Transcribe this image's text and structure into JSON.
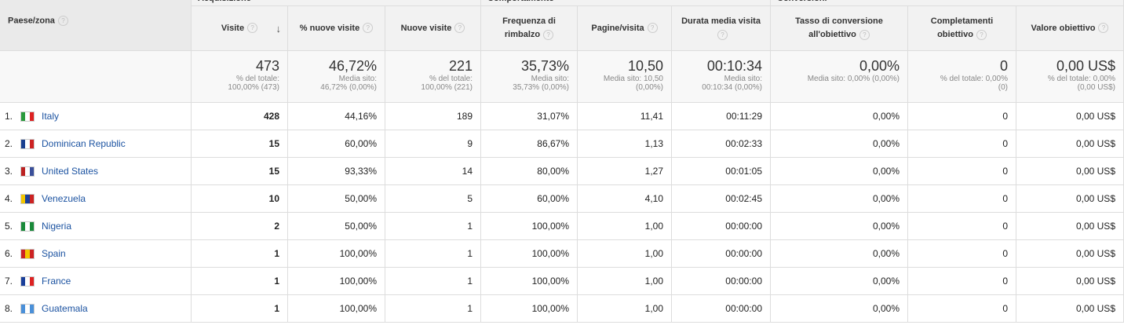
{
  "header_groups": [
    "Acquisizione",
    "Comportamento",
    "Conversioni"
  ],
  "country_header": "Paese/zona",
  "columns": [
    "Visite",
    "% nuove visite",
    "Nuove visite",
    "Frequenza di rimbalzo",
    "Pagine/visita",
    "Durata media visita",
    "Tasso di conversione all'obiettivo",
    "Completamenti obiettivo",
    "Valore obiettivo"
  ],
  "totals": [
    {
      "value": "473",
      "note": "% del totale: 100,00% (473)"
    },
    {
      "value": "46,72%",
      "note": "Media sito: 46,72% (0,00%)"
    },
    {
      "value": "221",
      "note": "% del totale: 100,00% (221)"
    },
    {
      "value": "35,73%",
      "note": "Media sito: 35,73% (0,00%)"
    },
    {
      "value": "10,50",
      "note": "Media sito: 10,50 (0,00%)"
    },
    {
      "value": "00:10:34",
      "note": "Media sito: 00:10:34 (0,00%)"
    },
    {
      "value": "0,00%",
      "note": "Media sito: 0,00% (0,00%)"
    },
    {
      "value": "0",
      "note": "% del totale: 0,00% (0)"
    },
    {
      "value": "0,00 US$",
      "note": "% del totale: 0,00% (0,00 US$)"
    }
  ],
  "rows": [
    {
      "rank": "1.",
      "country": "Italy",
      "values": [
        "428",
        "44,16%",
        "189",
        "31,07%",
        "11,41",
        "00:11:29",
        "0,00%",
        "0",
        "0,00 US$"
      ]
    },
    {
      "rank": "2.",
      "country": "Dominican Republic",
      "values": [
        "15",
        "60,00%",
        "9",
        "86,67%",
        "1,13",
        "00:02:33",
        "0,00%",
        "0",
        "0,00 US$"
      ]
    },
    {
      "rank": "3.",
      "country": "United States",
      "values": [
        "15",
        "93,33%",
        "14",
        "80,00%",
        "1,27",
        "00:01:05",
        "0,00%",
        "0",
        "0,00 US$"
      ]
    },
    {
      "rank": "4.",
      "country": "Venezuela",
      "values": [
        "10",
        "50,00%",
        "5",
        "60,00%",
        "4,10",
        "00:02:45",
        "0,00%",
        "0",
        "0,00 US$"
      ]
    },
    {
      "rank": "5.",
      "country": "Nigeria",
      "values": [
        "2",
        "50,00%",
        "1",
        "100,00%",
        "1,00",
        "00:00:00",
        "0,00%",
        "0",
        "0,00 US$"
      ]
    },
    {
      "rank": "6.",
      "country": "Spain",
      "values": [
        "1",
        "100,00%",
        "1",
        "100,00%",
        "1,00",
        "00:00:00",
        "0,00%",
        "0",
        "0,00 US$"
      ]
    },
    {
      "rank": "7.",
      "country": "France",
      "values": [
        "1",
        "100,00%",
        "1",
        "100,00%",
        "1,00",
        "00:00:00",
        "0,00%",
        "0",
        "0,00 US$"
      ]
    },
    {
      "rank": "8.",
      "country": "Guatemala",
      "values": [
        "1",
        "100,00%",
        "1",
        "100,00%",
        "1,00",
        "00:00:00",
        "0,00%",
        "0",
        "0,00 US$"
      ]
    }
  ]
}
